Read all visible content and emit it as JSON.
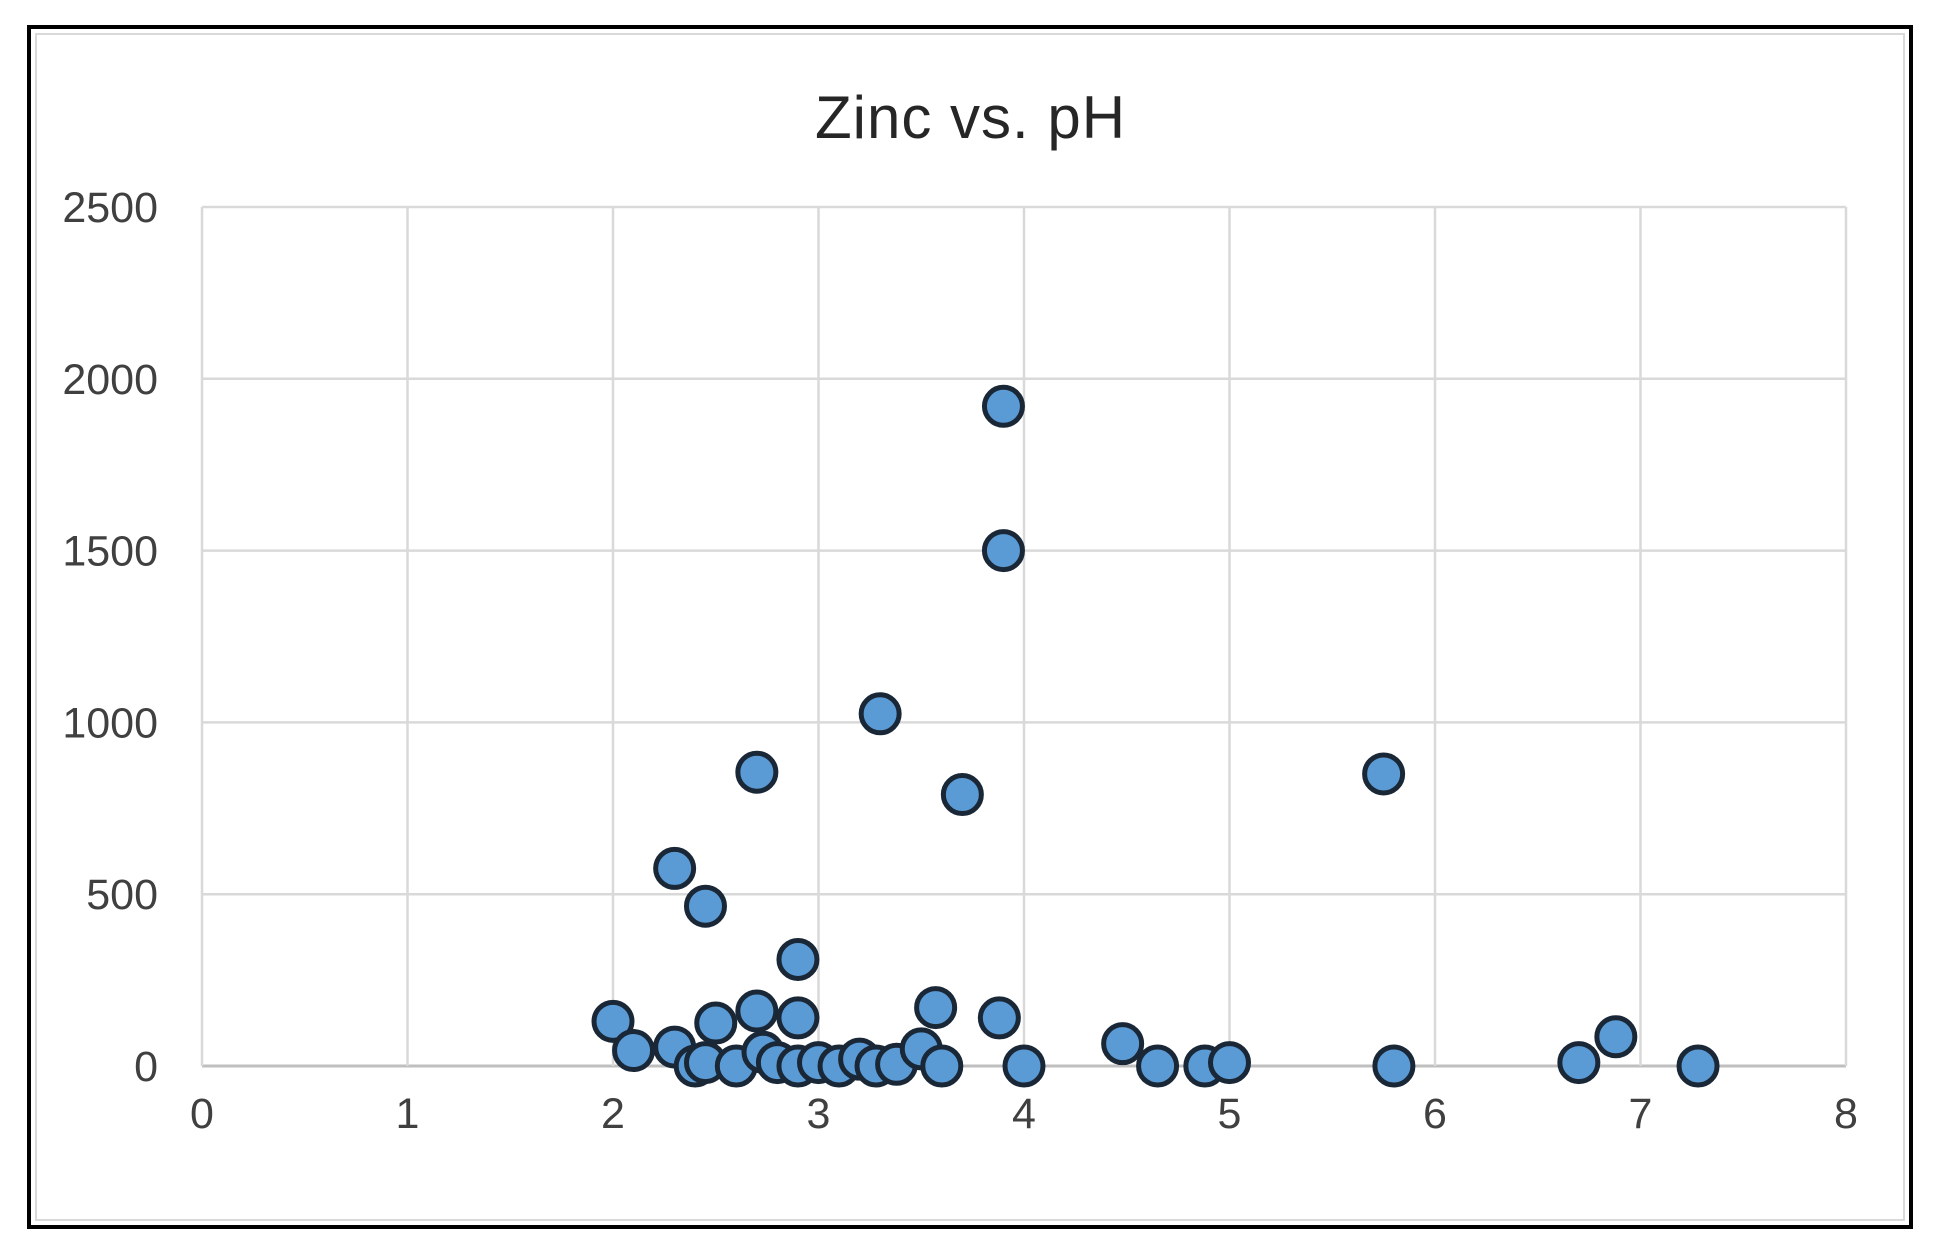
{
  "chart_data": {
    "type": "scatter",
    "title": "Zinc vs. pH",
    "xlabel": "",
    "ylabel": "",
    "xlim": [
      0,
      8
    ],
    "ylim": [
      0,
      2500
    ],
    "x_ticks": [
      0,
      1,
      2,
      3,
      4,
      5,
      6,
      7,
      8
    ],
    "y_ticks": [
      0,
      500,
      1000,
      1500,
      2000,
      2500
    ],
    "grid": true,
    "legend_position": "none",
    "series": [
      {
        "name": "Zinc",
        "points": [
          [
            2.0,
            130
          ],
          [
            2.1,
            45
          ],
          [
            2.3,
            575
          ],
          [
            2.3,
            55
          ],
          [
            2.4,
            0
          ],
          [
            2.45,
            465
          ],
          [
            2.45,
            10
          ],
          [
            2.5,
            125
          ],
          [
            2.6,
            0
          ],
          [
            2.7,
            855
          ],
          [
            2.7,
            160
          ],
          [
            2.73,
            40
          ],
          [
            2.8,
            10
          ],
          [
            2.9,
            310
          ],
          [
            2.9,
            140
          ],
          [
            2.9,
            0
          ],
          [
            3.0,
            10
          ],
          [
            3.1,
            0
          ],
          [
            3.2,
            20
          ],
          [
            3.3,
            1025
          ],
          [
            3.28,
            0
          ],
          [
            3.38,
            5
          ],
          [
            3.5,
            50
          ],
          [
            3.57,
            170
          ],
          [
            3.6,
            0
          ],
          [
            3.7,
            790
          ],
          [
            3.9,
            1920
          ],
          [
            3.9,
            1500
          ],
          [
            3.88,
            140
          ],
          [
            4.0,
            0
          ],
          [
            4.48,
            65
          ],
          [
            4.65,
            0
          ],
          [
            4.88,
            0
          ],
          [
            5.0,
            10
          ],
          [
            5.75,
            850
          ],
          [
            5.8,
            0
          ],
          [
            6.7,
            10
          ],
          [
            6.88,
            85
          ],
          [
            7.28,
            0
          ]
        ]
      }
    ],
    "colors": {
      "marker_fill": "#5B9BD5",
      "marker_stroke": "#1A2736",
      "gridline": "#D9D9D9",
      "axis_line": "#BFBFBF",
      "tick_label": "#404040",
      "title": "#262626",
      "frame": "#000000",
      "chart_border": "#D9D9D9"
    }
  }
}
